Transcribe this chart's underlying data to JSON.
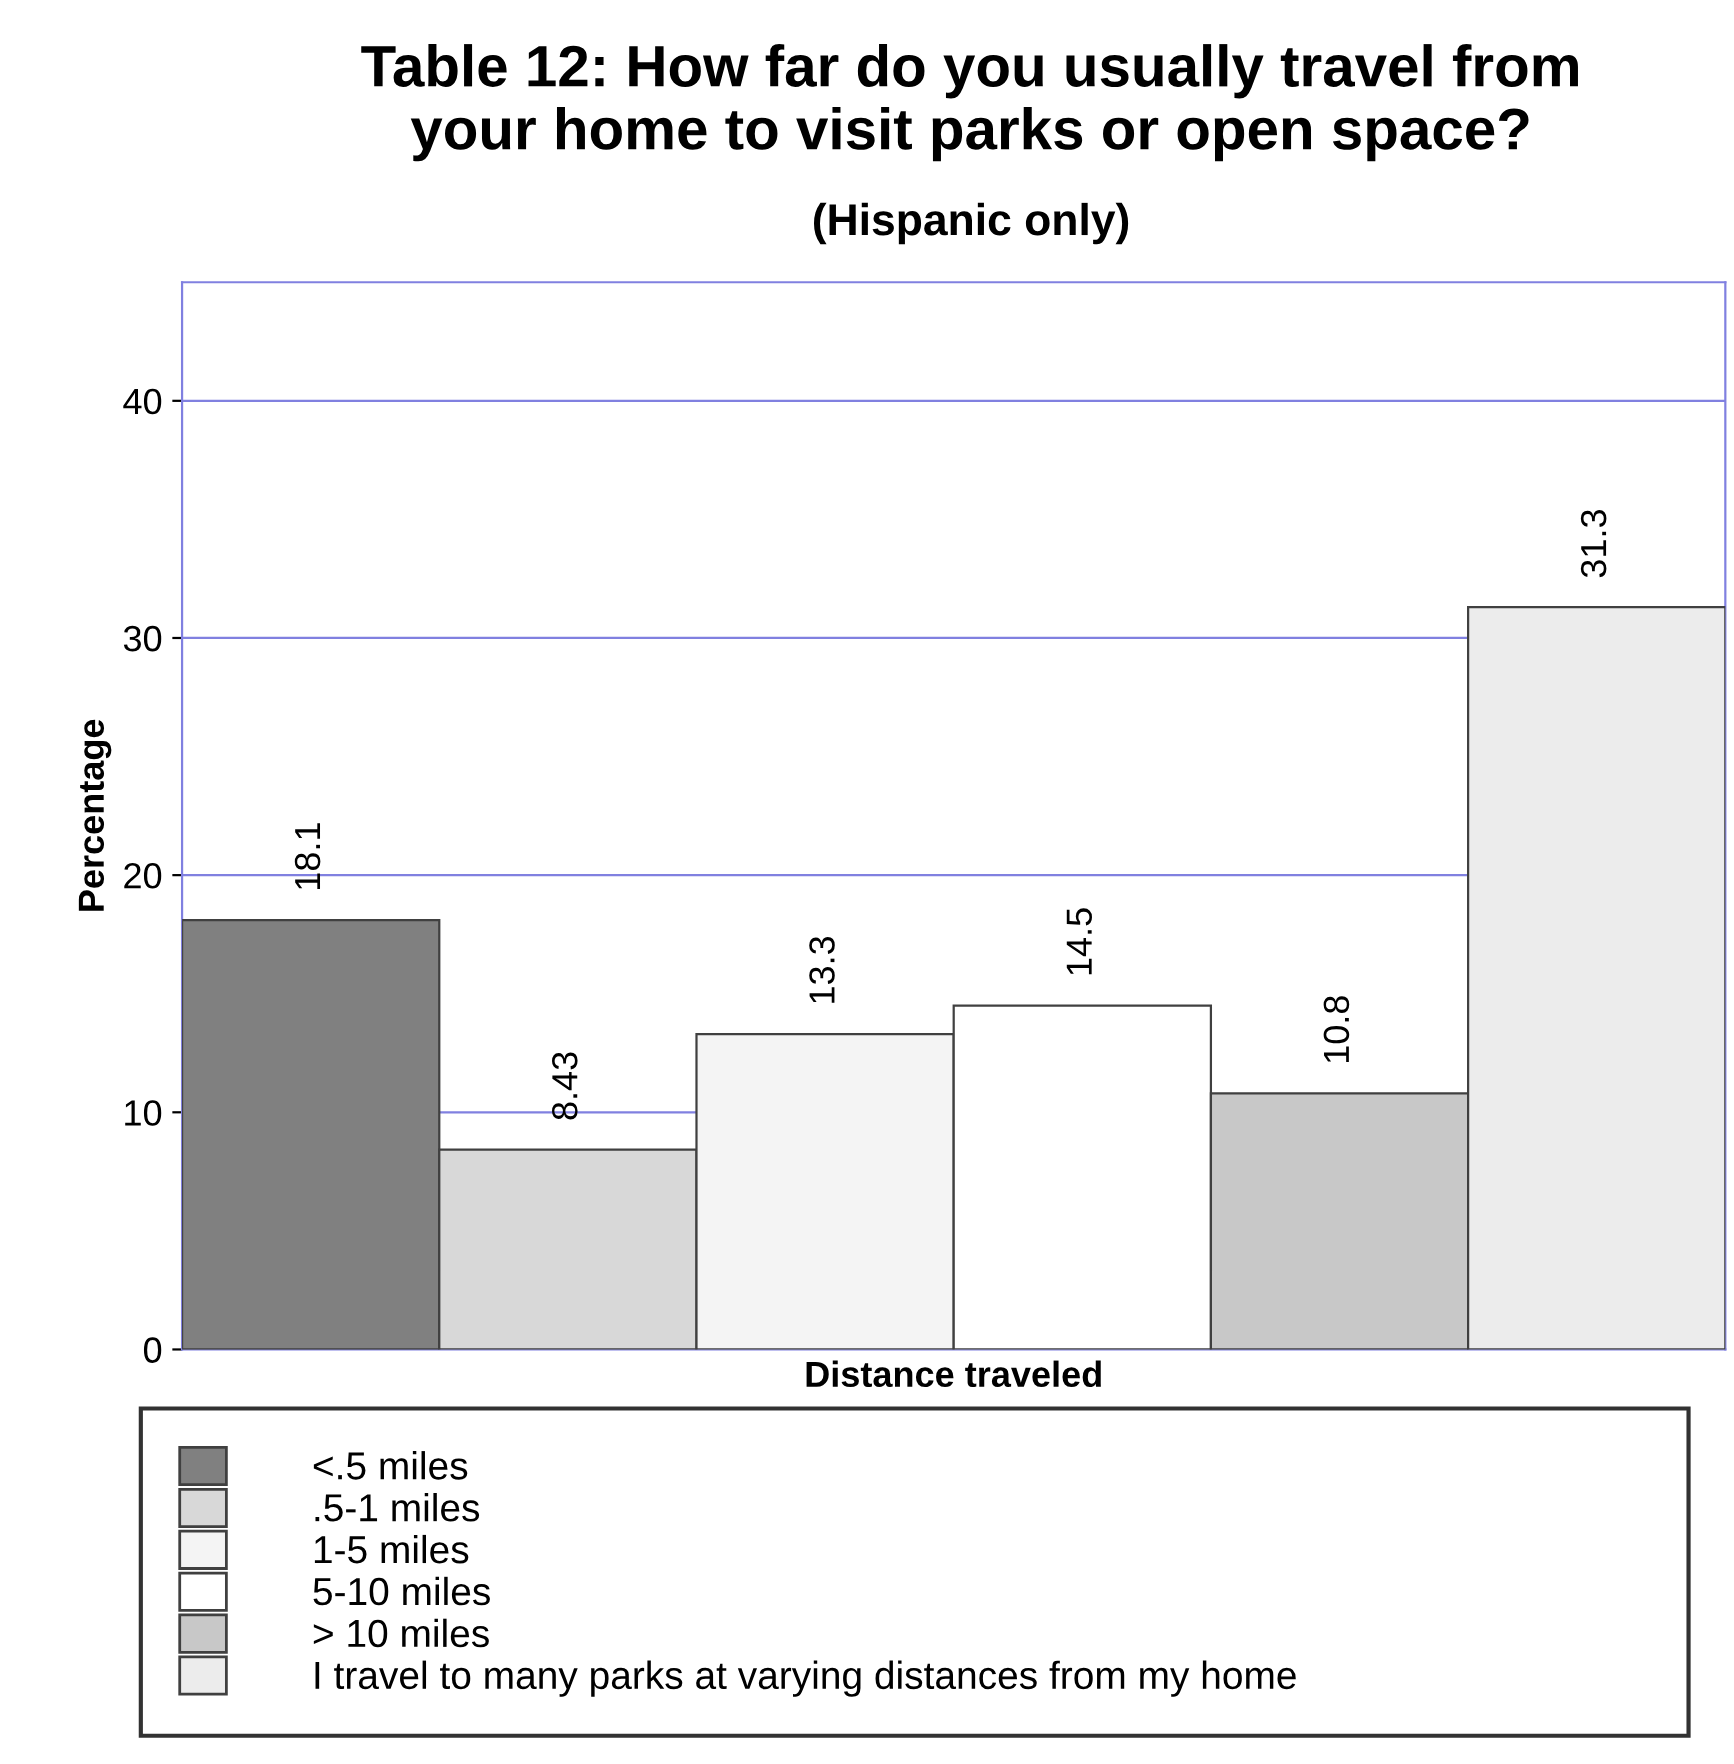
{
  "chart_data": {
    "type": "bar",
    "title": "Table 12: How far do you usually travel from\nyour home to visit parks or open space?",
    "subtitle": "(Hispanic only)",
    "xlabel": "Distance traveled",
    "ylabel": "Percentage",
    "categories": [
      null,
      null,
      null,
      null,
      null,
      null
    ],
    "series": [
      {
        "name": "<.5 miles",
        "color": "#808080",
        "values": [
          18.1,
          null,
          null,
          null,
          null,
          null
        ]
      },
      {
        "name": ".5-1 miles",
        "color": "#d8d8d8",
        "values": [
          null,
          8.43,
          null,
          null,
          null,
          null
        ]
      },
      {
        "name": "1-5 miles",
        "color": "#f4f4f4",
        "values": [
          null,
          null,
          13.3,
          null,
          null,
          null
        ]
      },
      {
        "name": "5-10 miles",
        "color": "#ffffff",
        "values": [
          null,
          null,
          null,
          14.5,
          null,
          null
        ]
      },
      {
        "name": "> 10 miles",
        "color": "#c8c8c8",
        "values": [
          null,
          null,
          null,
          null,
          10.8,
          null
        ]
      },
      {
        "name": "I travel to many parks at varying distances from my home",
        "color": "#ececec",
        "values": [
          null,
          null,
          null,
          null,
          null,
          31.3
        ]
      }
    ],
    "ylim": [
      0,
      45
    ],
    "yticks": [
      0,
      10,
      20,
      30,
      40
    ],
    "grid": "y",
    "data_labels": true,
    "legend": "bottom",
    "tick_labels": "y"
  }
}
